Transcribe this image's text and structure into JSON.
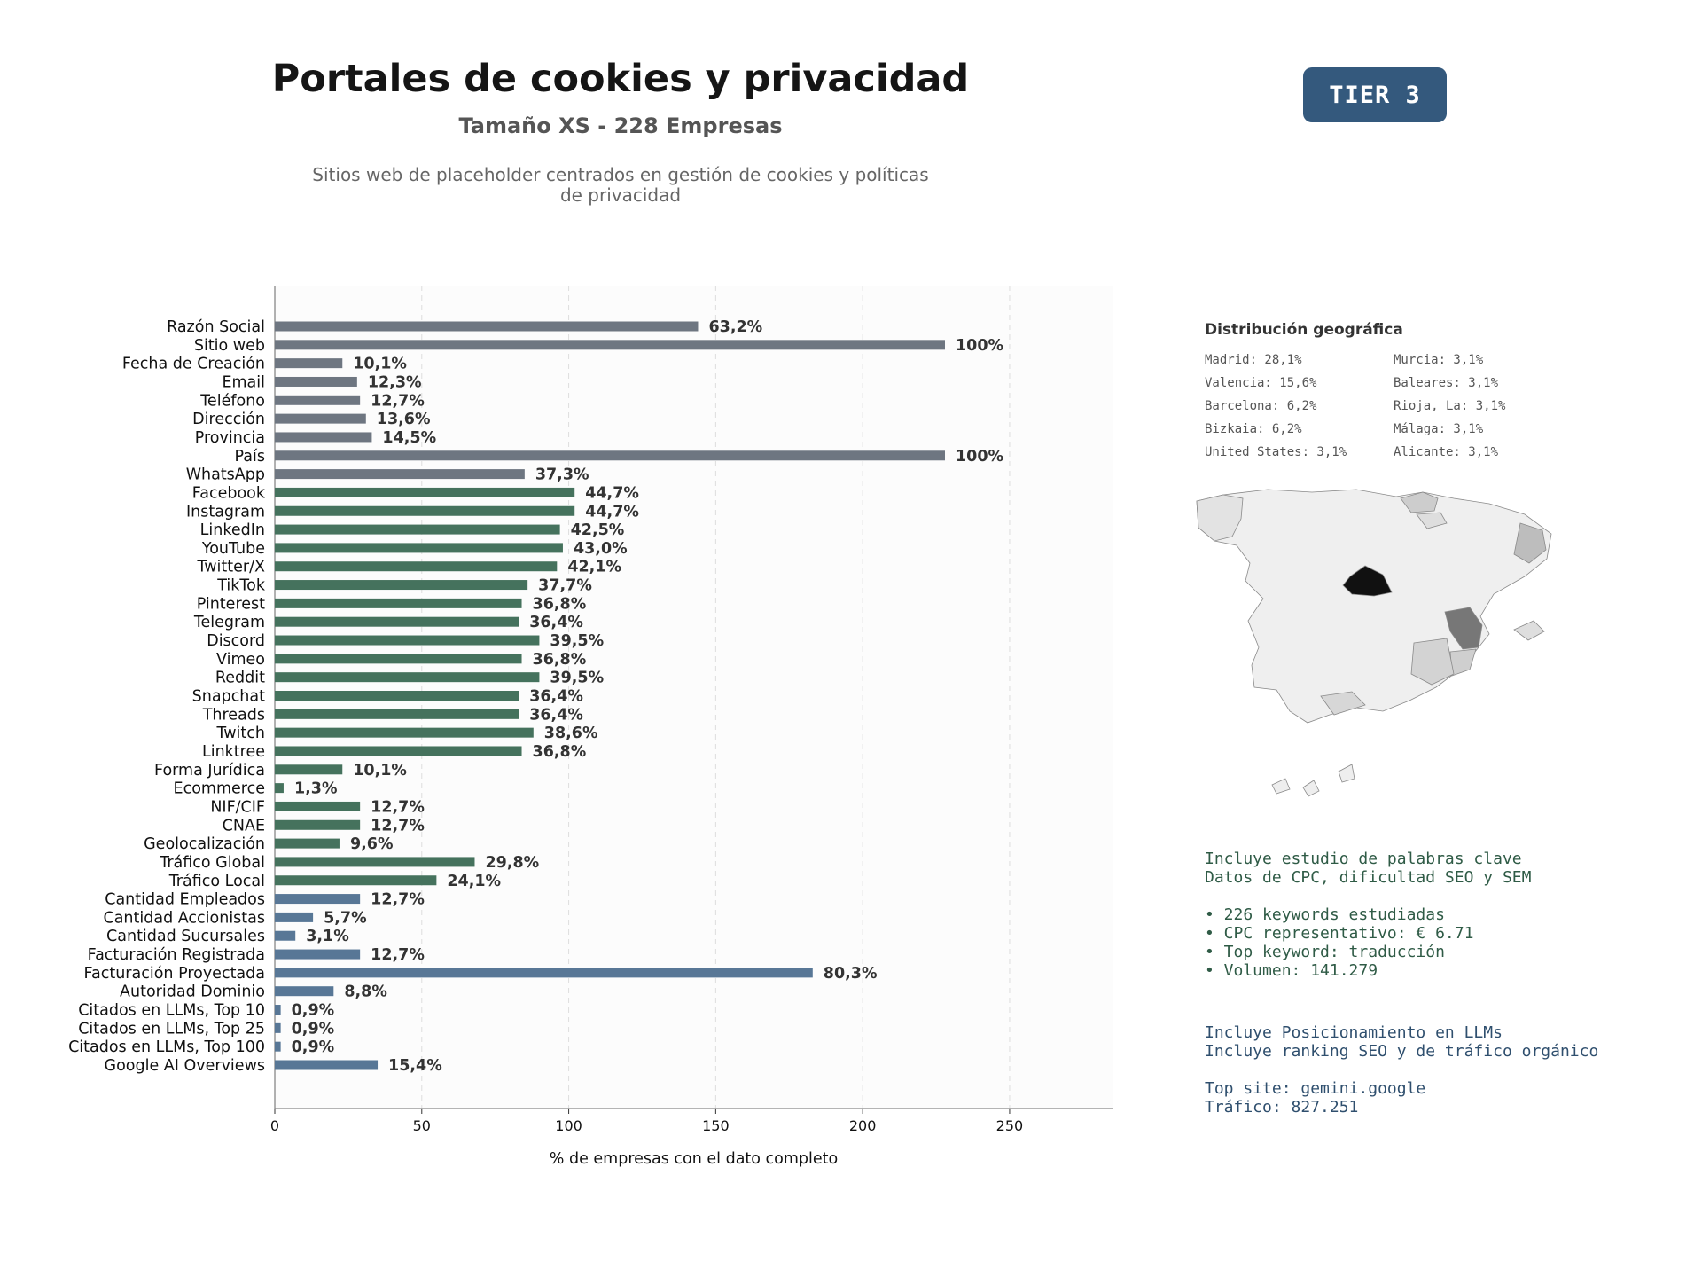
{
  "header": {
    "title": "Portales de cookies y privacidad",
    "subtitle": "Tamaño XS - 228 Empresas",
    "description": "Sitios web de placeholder centrados en gestión de cookies y políticas de privacidad",
    "tier": "TIER 3"
  },
  "colors": {
    "grey": "#6e7681",
    "green": "#45725d",
    "blue": "#587796"
  },
  "chart_data": {
    "type": "bar",
    "orientation": "horizontal",
    "title": "",
    "xlabel": "% de empresas con el dato completo",
    "ylabel": "",
    "xlim": [
      0,
      285
    ],
    "xticks": [
      0,
      50,
      100,
      150,
      200,
      250
    ],
    "grid": "vertical dashed",
    "categories": [
      "Razón Social",
      "Sitio web",
      "Fecha de Creación",
      "Email",
      "Teléfono",
      "Dirección",
      "Provincia",
      "País",
      "WhatsApp",
      "Facebook",
      "Instagram",
      "LinkedIn",
      "YouTube",
      "Twitter/X",
      "TikTok",
      "Pinterest",
      "Telegram",
      "Discord",
      "Vimeo",
      "Reddit",
      "Snapchat",
      "Threads",
      "Twitch",
      "Linktree",
      "Forma Jurídica",
      "Ecommerce",
      "NIF/CIF",
      "CNAE",
      "Geolocalización",
      "Tráfico Global",
      "Tráfico Local",
      "Cantidad Empleados",
      "Cantidad Accionistas",
      "Cantidad Sucursales",
      "Facturación Registrada",
      "Facturación Proyectada",
      "Autoridad Dominio",
      "Citados en LLMs, Top 10",
      "Citados en LLMs, Top 25",
      "Citados en LLMs, Top 100",
      "Google AI Overviews"
    ],
    "values": [
      144,
      228,
      23,
      28,
      29,
      31,
      33,
      228,
      85,
      102,
      102,
      97,
      98,
      96,
      86,
      84,
      83,
      90,
      84,
      90,
      83,
      83,
      88,
      84,
      23,
      3,
      29,
      29,
      22,
      68,
      55,
      29,
      13,
      7,
      29,
      183,
      20,
      2,
      2,
      2,
      35
    ],
    "labels": [
      "63,2%",
      "100%",
      "10,1%",
      "12,3%",
      "12,7%",
      "13,6%",
      "14,5%",
      "100%",
      "37,3%",
      "44,7%",
      "44,7%",
      "42,5%",
      "43,0%",
      "42,1%",
      "37,7%",
      "36,8%",
      "36,4%",
      "39,5%",
      "36,8%",
      "39,5%",
      "36,4%",
      "36,4%",
      "38,6%",
      "36,8%",
      "10,1%",
      "1,3%",
      "12,7%",
      "12,7%",
      "9,6%",
      "29,8%",
      "24,1%",
      "12,7%",
      "5,7%",
      "3,1%",
      "12,7%",
      "80,3%",
      "8,8%",
      "0,9%",
      "0,9%",
      "0,9%",
      "15,4%"
    ],
    "groups": [
      "grey",
      "grey",
      "grey",
      "grey",
      "grey",
      "grey",
      "grey",
      "grey",
      "grey",
      "green",
      "green",
      "green",
      "green",
      "green",
      "green",
      "green",
      "green",
      "green",
      "green",
      "green",
      "green",
      "green",
      "green",
      "green",
      "green",
      "green",
      "green",
      "green",
      "green",
      "green",
      "green",
      "blue",
      "blue",
      "blue",
      "blue",
      "blue",
      "blue",
      "blue",
      "blue",
      "blue",
      "blue"
    ]
  },
  "geo": {
    "title": "Distribución geográfica",
    "items": [
      "Madrid: 28,1%",
      "Valencia: 15,6%",
      "Barcelona: 6,2%",
      "Bizkaia: 6,2%",
      "United States: 3,1%",
      "Murcia: 3,1%",
      "Baleares: 3,1%",
      "Rioja, La: 3,1%",
      "Málaga: 3,1%",
      "Alicante: 3,1%"
    ]
  },
  "map_shading": {
    "Madrid": 1.0,
    "Valencia": 0.55,
    "Barcelona": 0.22,
    "Bizkaia": 0.22,
    "Murcia": 0.11,
    "Baleares": 0.11,
    "Rioja, La": 0.11,
    "Málaga": 0.11,
    "Alicante": 0.11
  },
  "info": {
    "keywords_heading": "Incluye estudio de palabras clave\nDatos de CPC, dificultad SEO y SEM",
    "keywords_bullets": "• 226 keywords estudiadas\n• CPC representativo: € 6.71\n• Top keyword: traducción\n• Volumen: 141.279",
    "llm_heading": "Incluye Posicionamiento en LLMs\nIncluye ranking SEO y de tráfico orgánico",
    "top_site": "Top site: gemini.google\nTráfico: 827.251"
  }
}
